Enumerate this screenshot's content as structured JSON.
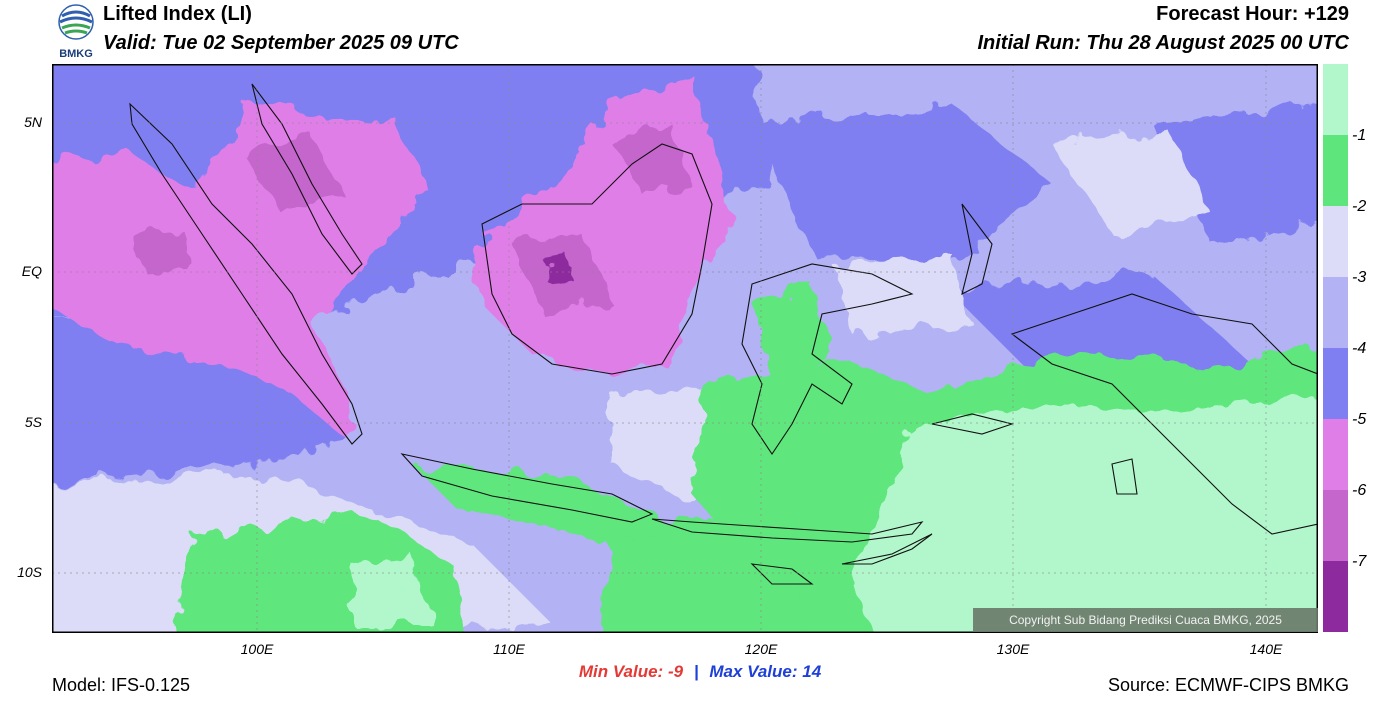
{
  "header": {
    "logo_text": "BMKG",
    "title": "Lifted Index (LI)",
    "valid": "Valid: Tue 02 September 2025 09 UTC",
    "forecast_hour": "Forecast Hour: +129",
    "initial_run": "Initial Run: Thu 28 August 2025 00 UTC"
  },
  "axes": {
    "lat_labels": [
      "5N",
      "EQ",
      "5S",
      "10S"
    ],
    "lon_labels": [
      "100E",
      "110E",
      "120E",
      "130E",
      "140E"
    ]
  },
  "colorbar": {
    "ticks": [
      "-1",
      "-2",
      "-3",
      "-4",
      "-5",
      "-6",
      "-7"
    ],
    "colors": [
      "#b2f7cc",
      "#5ee67d",
      "#dcdcf8",
      "#b2b2f5",
      "#7f7ff2",
      "#e07ee8",
      "#c466cc",
      "#8c2a9e"
    ]
  },
  "footer": {
    "min_label": "Min Value:",
    "min_value": "-9",
    "separator": "|",
    "max_label": "Max Value:",
    "max_value": "14",
    "model": "Model: IFS-0.125",
    "source": "Source: ECMWF-CIPS BMKG",
    "copyright": "Copyright Sub Bidang Prediksi Cuaca BMKG, 2025"
  }
}
